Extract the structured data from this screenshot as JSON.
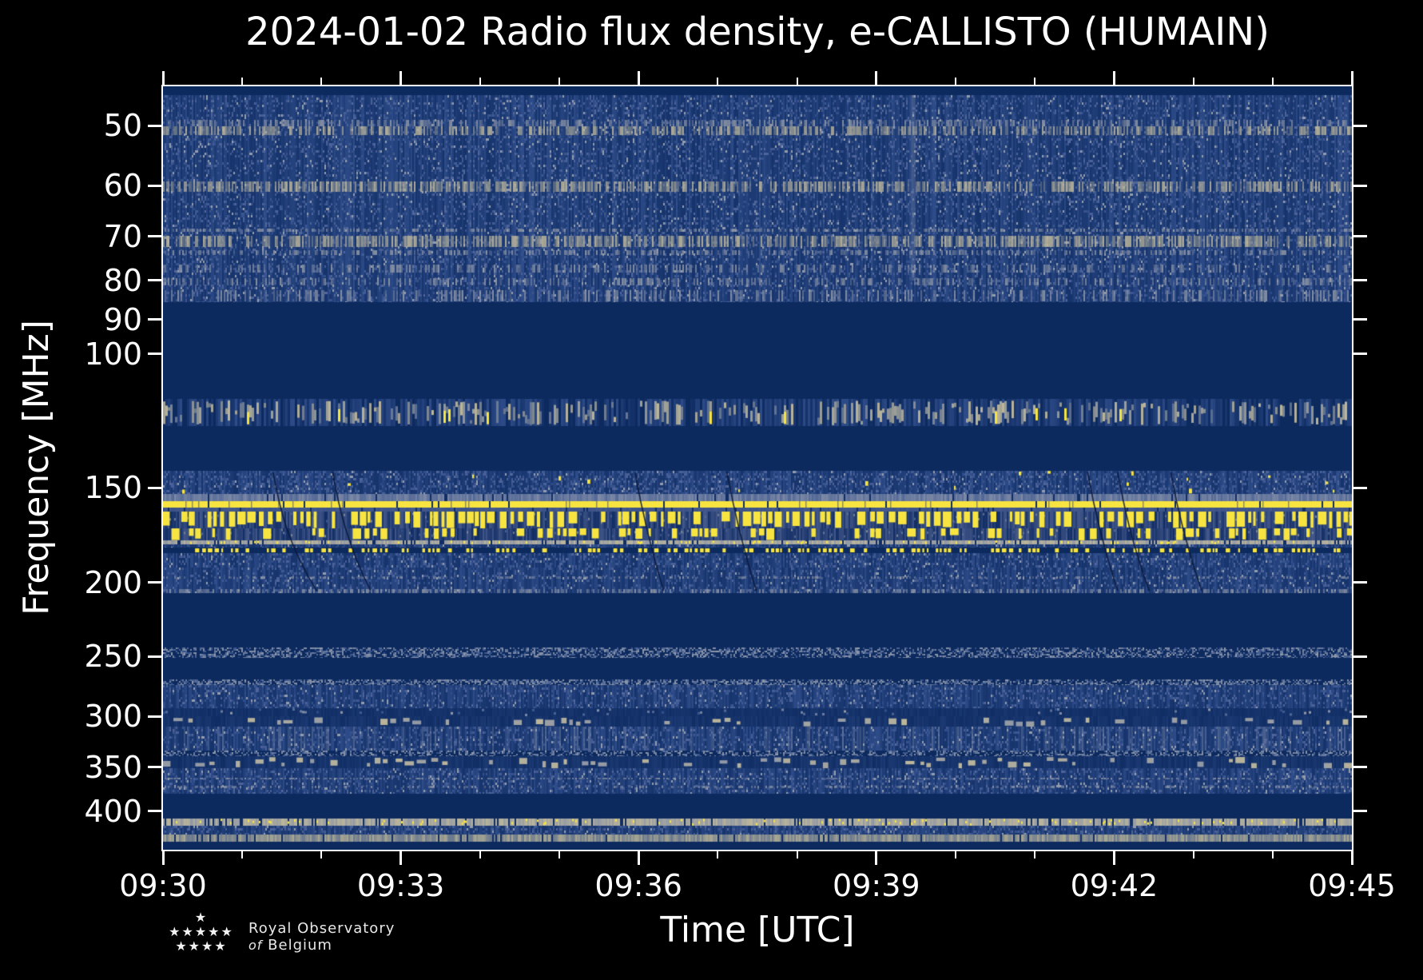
{
  "title": "2024-01-02 Radio flux density, e-CALLISTO (HUMAIN)",
  "x_axis": {
    "label": "Time [UTC]",
    "ticks": [
      "09:30",
      "09:33",
      "09:36",
      "09:39",
      "09:42",
      "09:45"
    ],
    "tick_minutes": [
      0,
      3,
      6,
      9,
      12,
      15
    ],
    "minor_tick_every_minutes": 1
  },
  "y_axis": {
    "label": "Frequency [MHz]",
    "scale": "log",
    "ticks": [
      50,
      60,
      70,
      80,
      90,
      100,
      150,
      200,
      250,
      300,
      350,
      400
    ],
    "range_mhz": [
      44.4,
      450
    ]
  },
  "logo": {
    "stars": [
      "★",
      "★★★★★",
      "★★★★"
    ],
    "line1": "Royal Observatory",
    "of": "of",
    "line2": "Belgium"
  },
  "colors": {
    "figure_background": "#000000",
    "axes_and_text": "#ffffff",
    "quiet_band": "#0d2a5e",
    "noise_blue": "#2e4c89",
    "interference_yellow": "#f7e440",
    "interference_tan": "#bcb69a"
  },
  "chart_data": {
    "type": "heatmap",
    "title": "2024-01-02 Radio flux density, e-CALLISTO (HUMAIN)",
    "date": "2024-01-02",
    "network": "e-CALLISTO",
    "station": "HUMAIN",
    "xlabel": "Time [UTC]",
    "ylabel": "Frequency [MHz]",
    "x_range": [
      "09:30",
      "09:45"
    ],
    "x_span_minutes": 15,
    "y_scale": "log",
    "y_range_mhz": [
      44.4,
      450
    ],
    "legend": "none",
    "grid": false,
    "palette": {
      "flat": "#0d2a5e",
      "dk": "#102d64",
      "mid": "#2e4c89",
      "lt": "#54699d",
      "pale": "#949dac",
      "gray": "#8f97a6",
      "tan": "#bcb69a",
      "tanlt": "#aaa892",
      "gb": "#45598b",
      "gblt": "#7e8aa6",
      "yl": "#f7e440"
    },
    "bands": [
      {
        "f": [
          44.4,
          45.6
        ],
        "kind": "flat",
        "note": "top edge quiet strip"
      },
      {
        "f": [
          45.6,
          85.4
        ],
        "kind": "noise",
        "d": 0.34,
        "note": "broadband galactic/terrestrial noise 45-85 MHz"
      },
      {
        "f": [
          49.2,
          50.1
        ],
        "kind": "hband",
        "c": "gray",
        "d": 0.4
      },
      {
        "f": [
          50.1,
          51.5
        ],
        "kind": "hband",
        "c": "tan",
        "d": 0.5,
        "note": "RFI band near 50 MHz"
      },
      {
        "f": [
          59.3,
          61.2
        ],
        "kind": "hband",
        "c": "tan",
        "d": 0.6,
        "note": "RFI band near 60 MHz"
      },
      {
        "f": [
          68.3,
          69.0
        ],
        "kind": "hband",
        "c": "gray",
        "d": 0.45
      },
      {
        "f": [
          69.8,
          72.2
        ],
        "kind": "hband",
        "c": "tan",
        "d": 0.65,
        "note": "RFI band near 70 MHz"
      },
      {
        "f": [
          73.0,
          74.1
        ],
        "kind": "hband",
        "c": "gray",
        "d": 0.4
      },
      {
        "f": [
          76.2,
          78.1
        ],
        "kind": "hband",
        "c": "gray",
        "d": 0.32
      },
      {
        "f": [
          79.5,
          81.1
        ],
        "kind": "hband",
        "c": "gray",
        "d": 0.32
      },
      {
        "f": [
          82.4,
          85.2
        ],
        "kind": "hband",
        "c": "gray",
        "d": 0.26
      },
      {
        "f": [
          45.6,
          80.0
        ],
        "kind": "vstreak",
        "xfrac": 0.63
      },
      {
        "f": [
          85.4,
          114.5
        ],
        "kind": "flat",
        "note": "quiet band 85-114 MHz"
      },
      {
        "f": [
          114.5,
          124.3
        ],
        "kind": "airband",
        "note": "sporadic blips with bright yellow bursts ~115-124 MHz"
      },
      {
        "f": [
          124.3,
          142.4
        ],
        "kind": "flat",
        "note": "quiet band 124-142 MHz"
      },
      {
        "f": [
          142.4,
          152.9
        ],
        "kind": "noise",
        "d": 0.5,
        "yellow": 0.05
      },
      {
        "f": [
          152.9,
          156.2
        ],
        "kind": "lightband",
        "c": "gblt"
      },
      {
        "f": [
          156.2,
          159.1
        ],
        "kind": "yellowline",
        "note": "strong continuous carrier ~157 MHz"
      },
      {
        "f": [
          159.1,
          161.3
        ],
        "kind": "lightband",
        "c": "gb"
      },
      {
        "f": [
          161.3,
          169.7
        ],
        "kind": "yellowbars",
        "d": 0.8,
        "note": "dense intermittent strong RFI 161-170 MHz"
      },
      {
        "f": [
          169.7,
          175.9
        ],
        "kind": "yellowbars",
        "d": 0.4
      },
      {
        "f": [
          175.9,
          178.0
        ],
        "kind": "tanline",
        "yl": 0.1
      },
      {
        "f": [
          178.0,
          180.0
        ],
        "kind": "noise",
        "d": 0.3
      },
      {
        "f": [
          180.0,
          182.9
        ],
        "kind": "yellowdots",
        "d": 0.55,
        "note": "dotted carrier ~181 MHz"
      },
      {
        "f": [
          182.9,
          190.8
        ],
        "kind": "noise",
        "d": 0.42
      },
      {
        "f": [
          190.8,
          206.3
        ],
        "kind": "noise",
        "d": 0.28
      },
      {
        "f": [
          196.0,
          197.5
        ],
        "kind": "hband",
        "c": "gray",
        "d": 0.3
      },
      {
        "f": [
          204.0,
          206.2
        ],
        "kind": "hband",
        "c": "gray",
        "d": 0.4
      },
      {
        "f": [
          143.0,
          205.0
        ],
        "kind": "scratches",
        "n": 7
      },
      {
        "f": [
          206.3,
          243.6
        ],
        "kind": "flat",
        "note": "quiet band 206-244 MHz"
      },
      {
        "f": [
          243.6,
          251.1
        ],
        "kind": "speckle",
        "d": 0.5,
        "note": "narrow noisy band near 250 MHz"
      },
      {
        "f": [
          251.1,
          267.9
        ],
        "kind": "flat"
      },
      {
        "f": [
          267.9,
          273.1
        ],
        "kind": "speckle",
        "d": 0.55
      },
      {
        "f": [
          273.1,
          292.7
        ],
        "kind": "noise",
        "d": 0.36
      },
      {
        "f": [
          292.7,
          299.8
        ],
        "kind": "sparsedots",
        "note": "sparse blips near 300 MHz"
      },
      {
        "f": [
          299.8,
          309.3
        ],
        "kind": "graydash",
        "d": 0.42
      },
      {
        "f": [
          309.3,
          332.7
        ],
        "kind": "noise",
        "d": 0.36,
        "bars": true
      },
      {
        "f": [
          332.7,
          338.4
        ],
        "kind": "speckle",
        "d": 0.45
      },
      {
        "f": [
          338.4,
          350.6
        ],
        "kind": "graydash",
        "d": 0.55,
        "note": "dashed RFI ~340-350 MHz"
      },
      {
        "f": [
          350.6,
          379.4
        ],
        "kind": "noise",
        "d": 0.36
      },
      {
        "f": [
          361.0,
          363.0
        ],
        "kind": "hband",
        "c": "gray",
        "d": 0.38
      },
      {
        "f": [
          370.0,
          372.5
        ],
        "kind": "hband",
        "c": "gray",
        "d": 0.32
      },
      {
        "f": [
          379.4,
          409.0
        ],
        "kind": "flat",
        "note": "quiet band 380-409 MHz"
      },
      {
        "f": [
          409.0,
          418.0
        ],
        "kind": "tanline",
        "yl": 0.12,
        "note": "bright narrow band ~410 MHz"
      },
      {
        "f": [
          418.0,
          429.0
        ],
        "kind": "noise",
        "d": 0.4
      },
      {
        "f": [
          429.0,
          438.5
        ],
        "kind": "lightband",
        "c": "tanlt"
      },
      {
        "f": [
          438.5,
          450.0
        ],
        "kind": "flat"
      }
    ]
  }
}
